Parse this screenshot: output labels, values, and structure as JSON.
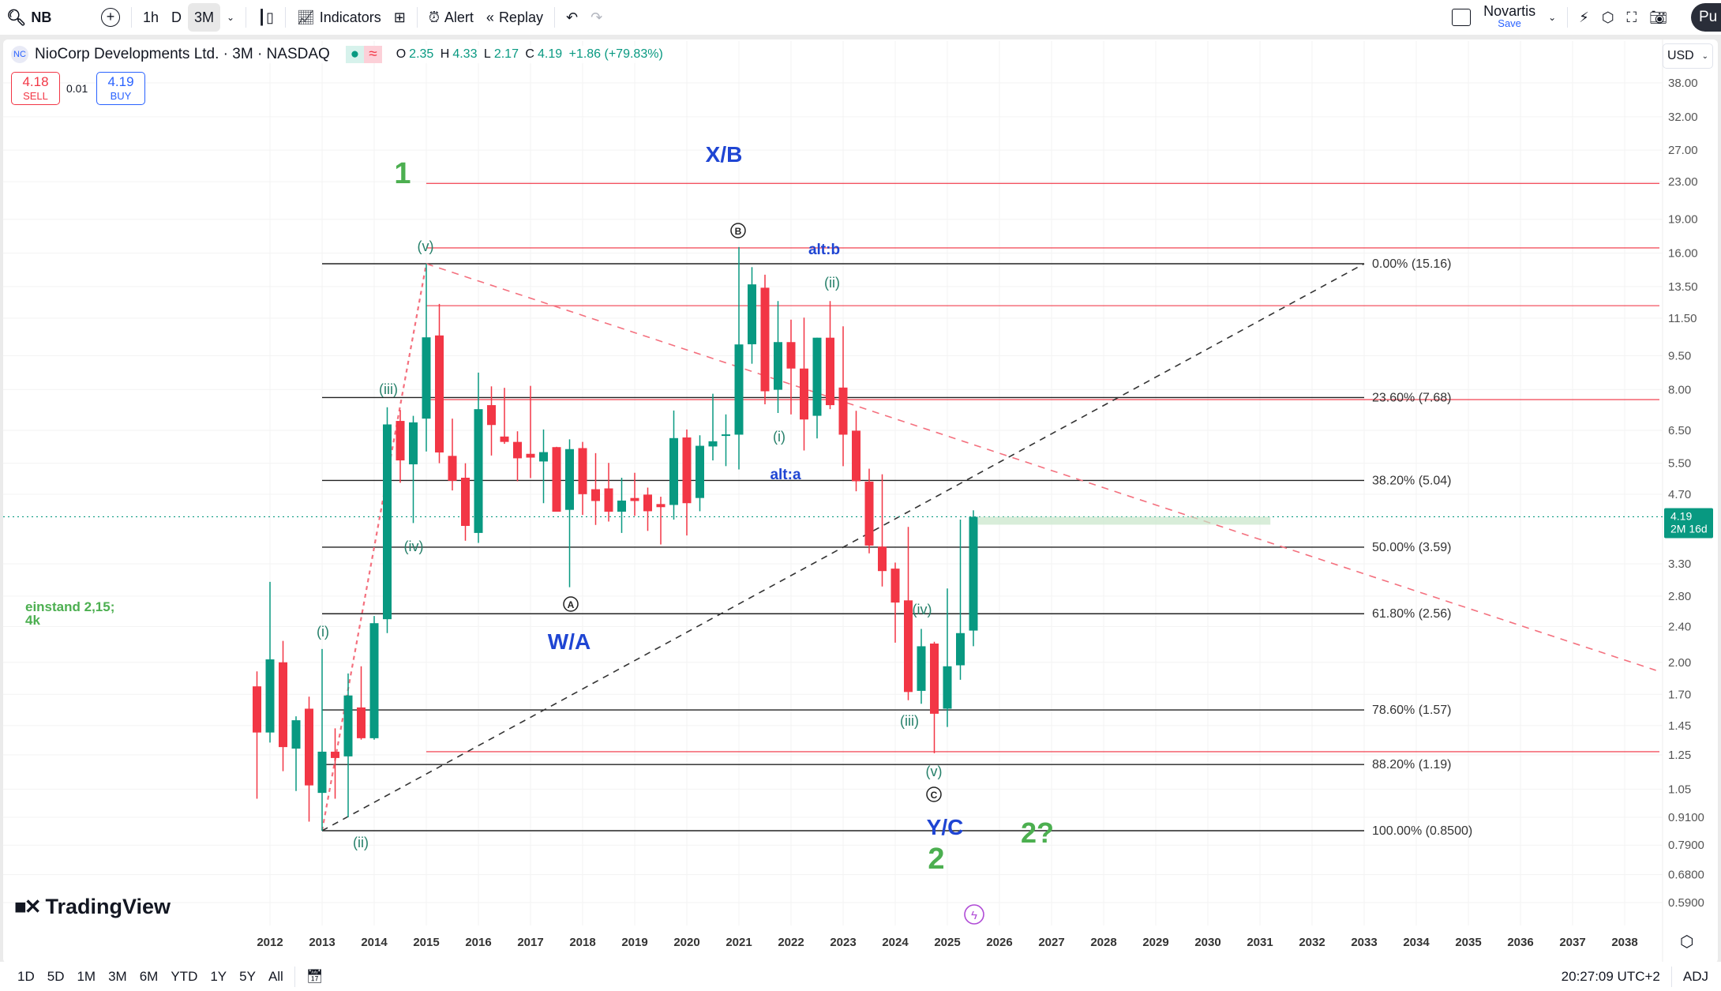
{
  "toolbar": {
    "symbol": "NB",
    "intervals": [
      "1h",
      "D",
      "3M"
    ],
    "active_interval": "3M",
    "indicators": "Indicators",
    "alert": "Alert",
    "replay": "Replay",
    "layout_name": "Novartis",
    "layout_save": "Save",
    "publish": "Pu"
  },
  "legend": {
    "title": "NioCorp Developments Ltd. · 3M · NASDAQ",
    "logo": "NC",
    "o_label": "O",
    "o": "2.35",
    "h_label": "H",
    "h": "4.33",
    "l_label": "L",
    "l": "2.17",
    "c_label": "C",
    "c": "4.19",
    "change": "+1.86 (+79.83%)"
  },
  "trade": {
    "sell_price": "4.18",
    "sell_label": "SELL",
    "spread": "0.01",
    "buy_price": "4.19",
    "buy_label": "BUY"
  },
  "currency": "USD",
  "watermark": "TradingView",
  "bottombar": {
    "ranges": [
      "1D",
      "5D",
      "1M",
      "3M",
      "6M",
      "YTD",
      "1Y",
      "5Y",
      "All"
    ],
    "time": "20:27:09 UTC+2",
    "adj": "ADJ"
  },
  "note": {
    "line1": "einstand 2,15;",
    "line2": "4k"
  },
  "annotations": {
    "one": "1",
    "xb": "X/B",
    "b": "B",
    "altb": "alt:b",
    "v_top": "(v)",
    "ii_top": "(ii)",
    "iii_left": "(iii)",
    "i_mid": "(i)",
    "alta": "alt:a",
    "iv_left": "(iv)",
    "a": "A",
    "wa": "W/A",
    "i_left": "(i)",
    "iv_right": "(iv)",
    "iii_right": "(iii)",
    "v_bottom": "(v)",
    "c": "C",
    "yc": "Y/C",
    "two": "2",
    "two_q": "2?",
    "ii_bottom": "(ii)"
  },
  "colors": {
    "up": "#089981",
    "down": "#f23645",
    "wave": "#26806a",
    "blue": "#1f45d3",
    "green": "#4caf50"
  },
  "chart_data": {
    "type": "candlestick",
    "title": "NioCorp Developments Ltd. · 3M · NASDAQ",
    "scale": "log",
    "first_period": 2011.75,
    "period_years": 0.25,
    "candles_ohlc": [
      [
        1.77,
        1.91,
        1.0,
        1.4
      ],
      [
        1.4,
        3.01,
        1.33,
        2.03
      ],
      [
        2.0,
        2.23,
        1.15,
        1.3
      ],
      [
        1.29,
        1.52,
        1.04,
        1.49
      ],
      [
        1.58,
        1.68,
        0.89,
        1.07
      ],
      [
        1.03,
        2.14,
        0.85,
        1.27
      ],
      [
        1.27,
        1.43,
        1.0,
        1.23
      ],
      [
        1.24,
        1.89,
        0.91,
        1.69
      ],
      [
        1.59,
        1.96,
        1.35,
        1.36
      ],
      [
        1.36,
        2.53,
        1.35,
        2.44
      ],
      [
        2.49,
        7.31,
        2.32,
        6.7
      ],
      [
        6.82,
        7.21,
        4.98,
        5.58
      ],
      [
        5.47,
        7.0,
        4.06,
        6.77
      ],
      [
        6.9,
        15.16,
        5.84,
        10.43
      ],
      [
        10.53,
        12.36,
        5.5,
        5.81
      ],
      [
        5.71,
        6.9,
        4.79,
        5.03
      ],
      [
        5.11,
        5.5,
        3.71,
        4.0
      ],
      [
        3.86,
        8.72,
        3.67,
        7.24
      ],
      [
        7.39,
        8.13,
        5.72,
        6.68
      ],
      [
        6.3,
        8.07,
        6.07,
        6.13
      ],
      [
        6.13,
        6.47,
        5.02,
        5.64
      ],
      [
        5.77,
        8.15,
        5.1,
        5.66
      ],
      [
        5.55,
        6.53,
        4.49,
        5.82
      ],
      [
        5.97,
        5.98,
        4.3,
        4.3
      ],
      [
        4.34,
        6.21,
        2.93,
        5.91
      ],
      [
        5.94,
        6.13,
        4.23,
        4.7
      ],
      [
        4.82,
        5.79,
        4.02,
        4.54
      ],
      [
        4.84,
        5.51,
        4.09,
        4.3
      ],
      [
        4.3,
        5.11,
        3.86,
        4.55
      ],
      [
        4.61,
        5.24,
        4.21,
        4.54
      ],
      [
        4.69,
        4.86,
        3.9,
        4.31
      ],
      [
        4.47,
        4.64,
        3.64,
        4.4
      ],
      [
        4.45,
        7.19,
        4.13,
        6.25
      ],
      [
        6.27,
        6.53,
        3.81,
        4.49
      ],
      [
        4.61,
        6.34,
        4.31,
        6.01
      ],
      [
        5.99,
        7.83,
        5.58,
        6.15
      ],
      [
        6.36,
        7.05,
        5.42,
        6.37
      ],
      [
        6.36,
        16.5,
        5.33,
        10.06
      ],
      [
        10.07,
        14.9,
        9.12,
        13.65
      ],
      [
        13.42,
        14.34,
        7.42,
        7.93
      ],
      [
        7.99,
        12.54,
        7.1,
        10.18
      ],
      [
        10.18,
        11.41,
        7.05,
        8.9
      ],
      [
        8.9,
        11.53,
        5.87,
        6.87
      ],
      [
        7.0,
        10.41,
        6.24,
        10.41
      ],
      [
        10.41,
        12.54,
        7.24,
        7.39
      ],
      [
        8.08,
        11.03,
        5.42,
        6.36
      ],
      [
        6.49,
        7.18,
        4.77,
        5.02
      ],
      [
        5.01,
        5.35,
        3.48,
        3.62
      ],
      [
        3.6,
        5.2,
        2.94,
        3.18
      ],
      [
        3.22,
        3.32,
        2.21,
        2.71
      ],
      [
        2.74,
        3.98,
        1.65,
        1.72
      ],
      [
        1.73,
        2.37,
        1.62,
        2.17
      ],
      [
        2.2,
        2.22,
        1.26,
        1.54
      ],
      [
        1.58,
        2.91,
        1.44,
        1.96
      ],
      [
        1.97,
        4.13,
        1.83,
        2.32
      ],
      [
        2.35,
        4.33,
        2.17,
        4.19
      ]
    ],
    "last_price": "4.19",
    "countdown": "2M 16d",
    "x_ticks": [
      "2012",
      "2013",
      "2014",
      "2015",
      "2016",
      "2017",
      "2018",
      "2019",
      "2020",
      "2021",
      "2022",
      "2023",
      "2024",
      "2025",
      "2026",
      "2027",
      "2028",
      "2029",
      "2030",
      "2031",
      "2032",
      "2033",
      "2034",
      "2035",
      "2036",
      "2037",
      "2038"
    ],
    "y_ticks": [
      "38.00",
      "32.00",
      "27.00",
      "23.00",
      "19.00",
      "16.00",
      "13.50",
      "11.50",
      "9.50",
      "8.00",
      "6.50",
      "5.50",
      "4.70",
      "3.30",
      "2.80",
      "2.40",
      "2.00",
      "1.70",
      "1.45",
      "1.25",
      "1.05",
      "0.9100",
      "0.7900",
      "0.6800",
      "0.5900"
    ],
    "fib_levels": [
      {
        "label": "0.00% (15.16)",
        "price": 15.16
      },
      {
        "label": "23.60% (7.68)",
        "price": 7.68
      },
      {
        "label": "38.20% (5.04)",
        "price": 5.04
      },
      {
        "label": "50.00% (3.59)",
        "price": 3.59
      },
      {
        "label": "61.80% (2.56)",
        "price": 2.56
      },
      {
        "label": "78.60% (1.57)",
        "price": 1.57
      },
      {
        "label": "88.20% (1.19)",
        "price": 1.19
      },
      {
        "label": "100.00% (0.8500)",
        "price": 0.85
      }
    ],
    "fib_start": 2013.0,
    "fib_end": 2033.0,
    "red_levels": [
      22.8,
      16.43,
      12.25,
      7.6,
      1.27
    ],
    "red_levels_start": 2015.0,
    "trendlines": [
      {
        "style": "red-dotted",
        "from": [
          2013.0,
          0.85
        ],
        "to": [
          2015.0,
          15.16
        ]
      },
      {
        "style": "red-dashed",
        "from": [
          2015.0,
          15.16
        ],
        "to": [
          2038.6,
          1.92
        ]
      },
      {
        "style": "black-dashed",
        "from": [
          2013.0,
          0.85
        ],
        "to": [
          2033.0,
          15.16
        ]
      }
    ]
  }
}
